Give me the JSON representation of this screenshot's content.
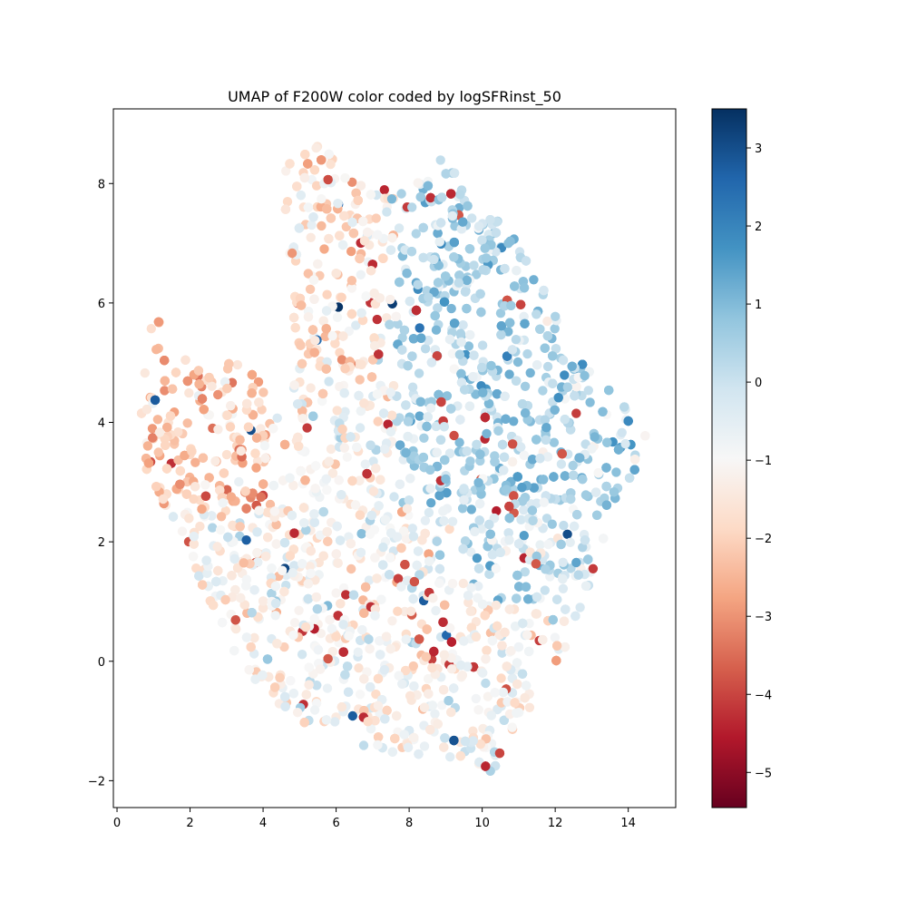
{
  "chart_data": {
    "type": "scatter",
    "title": "UMAP of F200W color coded by logSFRinst_50",
    "xlabel": "",
    "ylabel": "",
    "xlim": [
      -0.1,
      15.3
    ],
    "ylim": [
      -2.45,
      9.25
    ],
    "x_ticks": [
      "0",
      "2",
      "4",
      "6",
      "8",
      "10",
      "12",
      "14"
    ],
    "y_ticks": [
      "−2",
      "0",
      "2",
      "4",
      "6",
      "8"
    ],
    "grid": false,
    "colorbar": {
      "colormap": "RdBu",
      "range": [
        -5.45,
        3.5
      ],
      "tick_labels": [
        "−5",
        "−4",
        "−3",
        "−2",
        "−1",
        "0",
        "1",
        "2",
        "3"
      ],
      "colors": [
        "#67001f",
        "#b2182b",
        "#d6604d",
        "#f4a582",
        "#fddbc7",
        "#f7f7f7",
        "#d1e5f0",
        "#92c5de",
        "#4393c3",
        "#2166ac",
        "#053061"
      ]
    },
    "series": [
      {
        "point_count_approx": 9000,
        "note_region": "points fill a region bounded by approx (0.5,3.9),(1.0,6.1),(2.1,4.9),(3.9,5.1),(4.1,4.0),(4.8,4.6),(4.5,8.6),(5.5,8.7),(6.5,8.1),(8.7,8.5),(10.5,7.4),(11.2,6.8),(12.0,5.8),(12.6,5.2),(13.5,4.6),(14.6,3.8),(13.4,2.2),(12.3,0.2),(10.6,-1.9),(8.3,-1.6),(5.9,-1.2),(3.9,-0.6),(1.7,2.1)",
        "values_summary": "logSFRinst_50 ranges about -5.4 to 3.5; upper-right lobe (x 8-14, y 2.5-8.5) mostly 0 to 1.5 (blue); left lobe and lower region mostly -1 to -3.5 (red/orange) mixed with light blue"
      }
    ]
  }
}
